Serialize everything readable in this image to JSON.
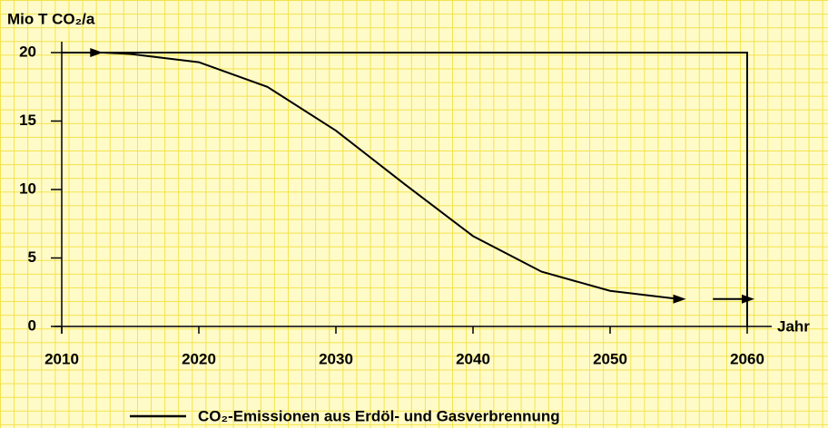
{
  "chart_data": {
    "type": "line",
    "ylabel": "Mio T CO₂/a",
    "xlabel": "Jahr",
    "x": [
      2010,
      2013,
      2015,
      2020,
      2025,
      2030,
      2035,
      2040,
      2045,
      2050,
      2055,
      2056,
      2057.5,
      2060
    ],
    "series": [
      {
        "name": "CO₂-Emissionen aus Erdöl- und Gasverbrennung",
        "color": "#000000",
        "values": [
          20,
          20,
          19.9,
          19.3,
          17.5,
          14.3,
          10.4,
          6.6,
          4.0,
          2.6,
          2.0,
          null,
          2.0,
          2.0
        ]
      }
    ],
    "xlim": [
      2010,
      2060
    ],
    "xticks": [
      2010,
      2020,
      2030,
      2040,
      2050,
      2060
    ],
    "ylim": [
      0,
      20
    ],
    "yticks": [
      0,
      5,
      10,
      15,
      20
    ]
  }
}
